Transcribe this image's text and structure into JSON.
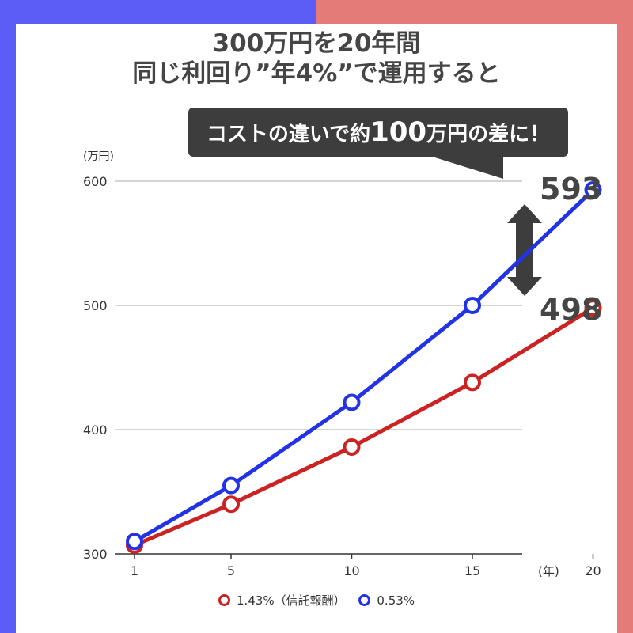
{
  "title": {
    "line1": "300万円を20年間",
    "line2": "同じ利回り”年4%”で運用すると"
  },
  "callout": {
    "prefix": "コストの違いで約",
    "emphasis": "100",
    "suffix": "万円の差に！"
  },
  "colors": {
    "left_bg": "#5c5cf7",
    "right_bg": "#e57b78",
    "high_fee": "#cc2222",
    "low_fee": "#2233e6",
    "callout_bg": "#3d3d3d"
  },
  "chart_data": {
    "type": "line",
    "x": [
      1,
      5,
      10,
      15,
      20
    ],
    "xlabel": "(年)",
    "ylabel": "(万円)",
    "ylim": [
      300,
      600
    ],
    "yticks": [
      300,
      400,
      500,
      600
    ],
    "grid": true,
    "legend_position": "bottom",
    "series": [
      {
        "name": "1.43%（信託報酬）",
        "color": "#cc2222",
        "values": [
          307,
          340,
          386,
          438,
          498
        ]
      },
      {
        "name": "0.53%",
        "color": "#2233e6",
        "values": [
          310,
          355,
          422,
          500,
          593
        ]
      }
    ],
    "end_labels": [
      "593",
      "498"
    ]
  }
}
